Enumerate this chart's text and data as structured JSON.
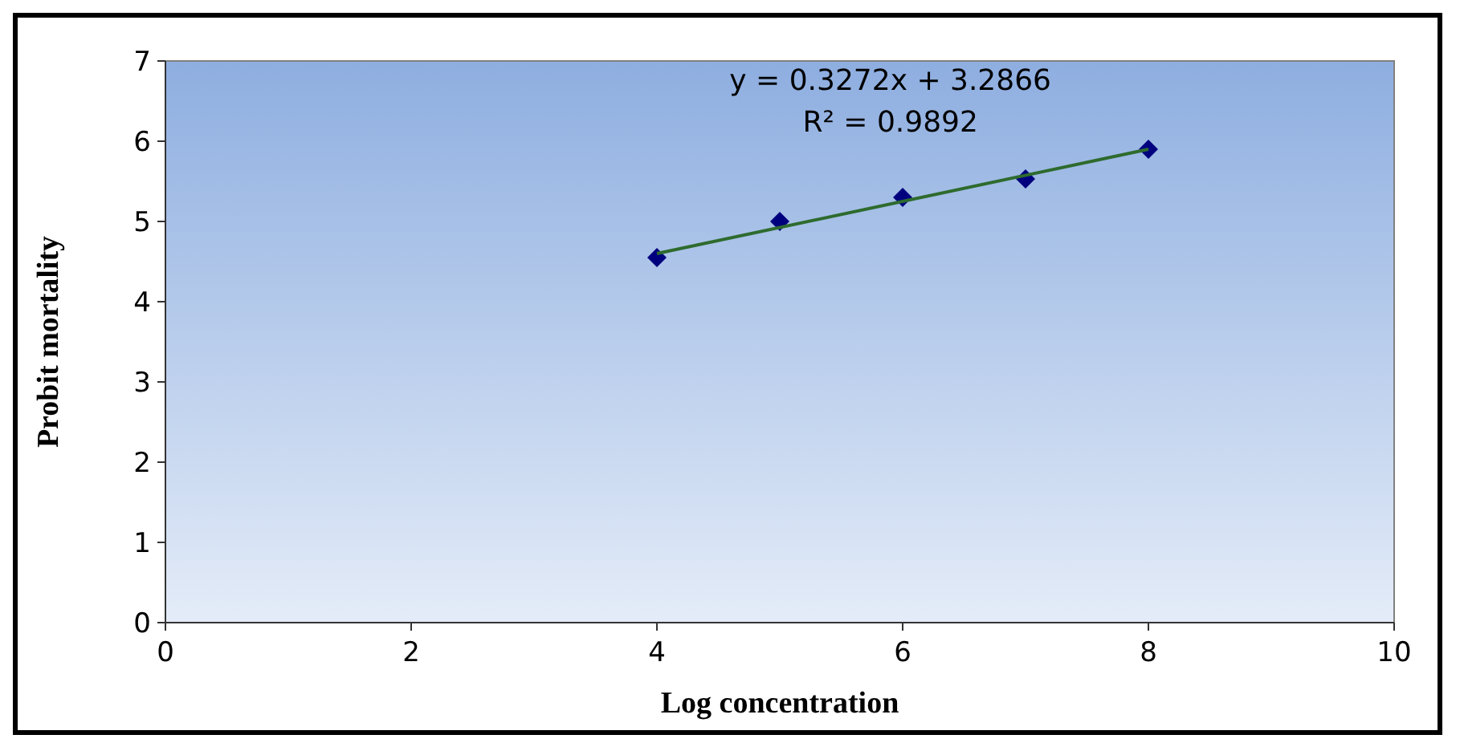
{
  "chart_data": {
    "type": "scatter",
    "xlabel": "Log concentration",
    "ylabel": "Probit mortality",
    "xlim": [
      0,
      10
    ],
    "xticks": [
      0,
      2,
      4,
      6,
      8,
      10
    ],
    "ylim": [
      0,
      7
    ],
    "yticks": [
      0,
      1,
      2,
      3,
      4,
      5,
      6,
      7
    ],
    "series": [
      {
        "color": "#00007f",
        "marker": "diamond",
        "x": [
          4,
          5,
          6,
          7,
          8
        ],
        "values": [
          4.55,
          5.0,
          5.3,
          5.53,
          5.9
        ]
      },
      {
        "type": "line",
        "color": "#2e6b2e",
        "marker": "none",
        "line_style": "solid",
        "x": [
          4,
          8
        ],
        "values": [
          4.6,
          5.9
        ]
      }
    ],
    "annotations": [
      "y = 0.3272x + 3.2866",
      "R² = 0.9892"
    ]
  }
}
